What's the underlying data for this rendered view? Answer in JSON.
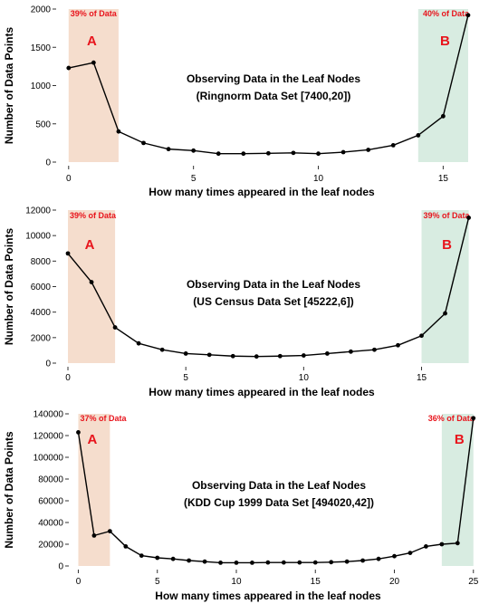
{
  "colors": {
    "region_a": "#f5ddcd",
    "region_b": "#d8ece1",
    "annotation": "#e8141c",
    "line": "#000000",
    "axis": "#333333"
  },
  "chart_data": [
    {
      "type": "line",
      "title": "Observing Data in the Leaf Nodes",
      "subtitle": "(Ringnorm Data Set [7400,20])",
      "xlabel": "How many times appeared in the leaf nodes",
      "ylabel": "Number of Data Points",
      "x": [
        0,
        1,
        2,
        3,
        4,
        5,
        6,
        7,
        8,
        9,
        10,
        11,
        12,
        13,
        14,
        15,
        16
      ],
      "values": [
        1230,
        1300,
        400,
        250,
        170,
        150,
        110,
        110,
        115,
        120,
        110,
        130,
        160,
        220,
        350,
        600,
        1920
      ],
      "xlim": [
        -0.5,
        16.4
      ],
      "ylim": [
        0,
        2000
      ],
      "xticks": [
        0,
        5,
        10,
        15
      ],
      "yticks": [
        0,
        500,
        1000,
        1500,
        2000
      ],
      "grid": false,
      "regions": [
        {
          "label": "A",
          "pct_label": "39% of Data",
          "x_range": [
            0,
            2
          ]
        },
        {
          "label": "B",
          "pct_label": "40% of Data",
          "x_range": [
            14,
            16
          ]
        }
      ]
    },
    {
      "type": "line",
      "title": "Observing Data in the Leaf Nodes",
      "subtitle": "(US Census Data Set [45222,6])",
      "xlabel": "How many times appeared in the leaf nodes",
      "ylabel": "Number of Data Points",
      "x": [
        0,
        1,
        2,
        3,
        4,
        5,
        6,
        7,
        8,
        9,
        10,
        11,
        12,
        13,
        14,
        15,
        16,
        17
      ],
      "values": [
        8600,
        6350,
        2800,
        1550,
        1050,
        750,
        650,
        550,
        520,
        550,
        600,
        750,
        900,
        1050,
        1400,
        2150,
        3900,
        11400
      ],
      "xlim": [
        -0.5,
        17.4
      ],
      "ylim": [
        0,
        12000
      ],
      "xticks": [
        0,
        5,
        10,
        15
      ],
      "yticks": [
        0,
        2000,
        4000,
        6000,
        8000,
        10000,
        12000
      ],
      "grid": false,
      "regions": [
        {
          "label": "A",
          "pct_label": "39% of Data",
          "x_range": [
            0,
            2
          ]
        },
        {
          "label": "B",
          "pct_label": "39% of Data",
          "x_range": [
            15,
            17
          ]
        }
      ]
    },
    {
      "type": "line",
      "title": "Observing Data in the Leaf Nodes",
      "subtitle": "(KDD Cup 1999 Data Set [494020,42])",
      "xlabel": "How many times appeared in the leaf nodes",
      "ylabel": "Number of Data Points",
      "x": [
        0,
        1,
        2,
        3,
        4,
        5,
        6,
        7,
        8,
        9,
        10,
        11,
        12,
        13,
        14,
        15,
        16,
        17,
        18,
        19,
        20,
        21,
        22,
        23,
        24,
        25
      ],
      "values": [
        123000,
        28000,
        32000,
        18000,
        9500,
        7500,
        6500,
        5000,
        4000,
        3000,
        3000,
        3000,
        3200,
        3200,
        3200,
        3200,
        3500,
        4000,
        5000,
        6500,
        9000,
        12000,
        18000,
        20000,
        21000,
        136000
      ],
      "xlim": [
        -0.6,
        25.3
      ],
      "ylim": [
        0,
        140000
      ],
      "xticks": [
        0,
        5,
        10,
        15,
        20,
        25
      ],
      "yticks": [
        0,
        20000,
        40000,
        60000,
        80000,
        100000,
        120000,
        140000
      ],
      "grid": false,
      "regions": [
        {
          "label": "A",
          "pct_label": "37% of Data",
          "x_range": [
            0,
            2
          ]
        },
        {
          "label": "B",
          "pct_label": "36% of Data",
          "x_range": [
            23,
            25
          ]
        }
      ]
    }
  ]
}
